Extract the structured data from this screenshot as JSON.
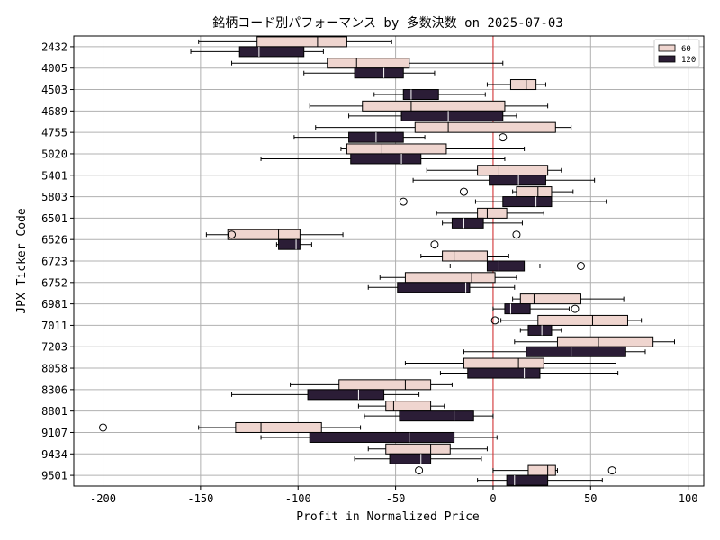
{
  "chart_data": {
    "type": "boxplot-horizontal",
    "title": "銘柄コード別パフォーマンス by 多数決数 on 2025-07-03",
    "xlabel": "Profit in Normalized Price",
    "ylabel": "JPX Ticker Code",
    "xlim": [
      -215,
      108
    ],
    "xticks": [
      -200,
      -150,
      -100,
      -50,
      0,
      50,
      100
    ],
    "grid": true,
    "legend_position": "top-right",
    "reference_line": {
      "x": 0,
      "color": "#d62728"
    },
    "colors": {
      "60": "#efd5cf",
      "120": "#2b1d36"
    },
    "categories": [
      "2432",
      "4005",
      "4503",
      "4689",
      "4755",
      "5020",
      "5401",
      "5803",
      "6501",
      "6526",
      "6723",
      "6752",
      "6981",
      "7011",
      "7203",
      "8058",
      "8306",
      "8801",
      "9107",
      "9434",
      "9501"
    ],
    "series": [
      {
        "name": "60",
        "boxes": [
          {
            "whislo": -151,
            "q1": -121,
            "med": -90,
            "q3": -75,
            "whishi": -52,
            "fliers": []
          },
          {
            "whislo": -134,
            "q1": -85,
            "med": -70,
            "q3": -43,
            "whishi": 5,
            "fliers": []
          },
          {
            "whislo": -3,
            "q1": 9,
            "med": 17,
            "q3": 22,
            "whishi": 27,
            "fliers": []
          },
          {
            "whislo": -94,
            "q1": -67,
            "med": -42,
            "q3": 6,
            "whishi": 28,
            "fliers": []
          },
          {
            "whislo": -91,
            "q1": -40,
            "med": -23,
            "q3": 32,
            "whishi": 40,
            "fliers": []
          },
          {
            "whislo": -78,
            "q1": -75,
            "med": -57,
            "q3": -24,
            "whishi": 16,
            "fliers": []
          },
          {
            "whislo": -34,
            "q1": -8,
            "med": 3,
            "q3": 28,
            "whishi": 35,
            "fliers": []
          },
          {
            "whislo": 10,
            "q1": 12,
            "med": 23,
            "q3": 30,
            "whishi": 41,
            "fliers": [
              -15
            ]
          },
          {
            "whislo": -29,
            "q1": -8,
            "med": -3,
            "q3": 7,
            "whishi": 26,
            "fliers": []
          },
          {
            "whislo": -147,
            "q1": -136,
            "med": -110,
            "q3": -99,
            "whishi": -77,
            "fliers": [
              -134,
              12
            ]
          },
          {
            "whislo": -37,
            "q1": -26,
            "med": -20,
            "q3": -3,
            "whishi": 8,
            "fliers": []
          },
          {
            "whislo": -58,
            "q1": -45,
            "med": -11,
            "q3": 1,
            "whishi": 12,
            "fliers": []
          },
          {
            "whislo": 10,
            "q1": 14,
            "med": 21,
            "q3": 45,
            "whishi": 67,
            "fliers": []
          },
          {
            "whislo": 4,
            "q1": 23,
            "med": 51,
            "q3": 69,
            "whishi": 76,
            "fliers": [
              1
            ]
          },
          {
            "whislo": 11,
            "q1": 33,
            "med": 54,
            "q3": 82,
            "whishi": 93,
            "fliers": []
          },
          {
            "whislo": -45,
            "q1": -15,
            "med": 13,
            "q3": 26,
            "whishi": 63,
            "fliers": []
          },
          {
            "whislo": -104,
            "q1": -79,
            "med": -45,
            "q3": -32,
            "whishi": -21,
            "fliers": []
          },
          {
            "whislo": -69,
            "q1": -55,
            "med": -51,
            "q3": -32,
            "whishi": -25,
            "fliers": []
          },
          {
            "whislo": -151,
            "q1": -132,
            "med": -119,
            "q3": -88,
            "whishi": -68,
            "fliers": [
              -200
            ]
          },
          {
            "whislo": -64,
            "q1": -55,
            "med": -32,
            "q3": -22,
            "whishi": -3,
            "fliers": []
          },
          {
            "whislo": 0,
            "q1": 18,
            "med": 28,
            "q3": 32,
            "whishi": 33,
            "fliers": [
              -38,
              61
            ]
          }
        ]
      },
      {
        "name": "120",
        "boxes": [
          {
            "whislo": -155,
            "q1": -130,
            "med": -120,
            "q3": -97,
            "whishi": -87,
            "fliers": []
          },
          {
            "whislo": -97,
            "q1": -71,
            "med": -56,
            "q3": -46,
            "whishi": -30,
            "fliers": []
          },
          {
            "whislo": -61,
            "q1": -46,
            "med": -42,
            "q3": -28,
            "whishi": -4,
            "fliers": []
          },
          {
            "whislo": -74,
            "q1": -47,
            "med": -23,
            "q3": 5,
            "whishi": 12,
            "fliers": []
          },
          {
            "whislo": -102,
            "q1": -74,
            "med": -60,
            "q3": -46,
            "whishi": -35,
            "fliers": [
              5
            ]
          },
          {
            "whislo": -119,
            "q1": -73,
            "med": -47,
            "q3": -37,
            "whishi": 6,
            "fliers": []
          },
          {
            "whislo": -41,
            "q1": -2,
            "med": 13,
            "q3": 27,
            "whishi": 52,
            "fliers": []
          },
          {
            "whislo": -9,
            "q1": 5,
            "med": 22,
            "q3": 30,
            "whishi": 58,
            "fliers": [
              -46
            ]
          },
          {
            "whislo": -26,
            "q1": -21,
            "med": -15,
            "q3": -5,
            "whishi": 15,
            "fliers": []
          },
          {
            "whislo": -111,
            "q1": -110,
            "med": -101,
            "q3": -99,
            "whishi": -93,
            "fliers": [
              -30
            ]
          },
          {
            "whislo": -22,
            "q1": -3,
            "med": 3,
            "q3": 16,
            "whishi": 24,
            "fliers": [
              45
            ]
          },
          {
            "whislo": -64,
            "q1": -49,
            "med": -14,
            "q3": -12,
            "whishi": 11,
            "fliers": []
          },
          {
            "whislo": 0,
            "q1": 6,
            "med": 9,
            "q3": 19,
            "whishi": 39,
            "fliers": [
              42
            ]
          },
          {
            "whislo": 14,
            "q1": 18,
            "med": 25,
            "q3": 30,
            "whishi": 35,
            "fliers": []
          },
          {
            "whislo": -15,
            "q1": 17,
            "med": 40,
            "q3": 68,
            "whishi": 78,
            "fliers": []
          },
          {
            "whislo": -27,
            "q1": -13,
            "med": 16,
            "q3": 24,
            "whishi": 64,
            "fliers": []
          },
          {
            "whislo": -134,
            "q1": -95,
            "med": -69,
            "q3": -56,
            "whishi": -38,
            "fliers": []
          },
          {
            "whislo": -66,
            "q1": -48,
            "med": -20,
            "q3": -10,
            "whishi": 0,
            "fliers": []
          },
          {
            "whislo": -119,
            "q1": -94,
            "med": -43,
            "q3": -20,
            "whishi": 2,
            "fliers": []
          },
          {
            "whislo": -71,
            "q1": -53,
            "med": -37,
            "q3": -32,
            "whishi": -6,
            "fliers": []
          },
          {
            "whislo": -8,
            "q1": 7,
            "med": 11,
            "q3": 28,
            "whishi": 56,
            "fliers": []
          }
        ]
      }
    ]
  }
}
